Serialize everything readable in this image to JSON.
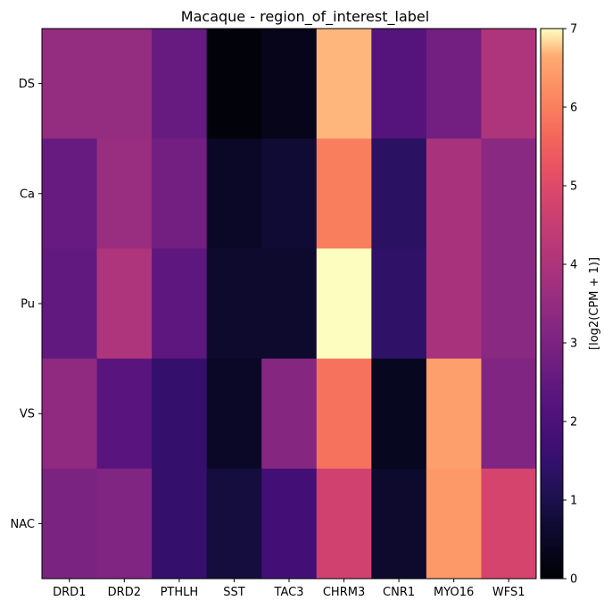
{
  "chart_data": {
    "type": "heatmap",
    "title": "Macaque - region_of_interest_label",
    "x_categories": [
      "DRD1",
      "DRD2",
      "PTHLH",
      "SST",
      "TAC3",
      "CHRM3",
      "CNR1",
      "MYO16",
      "WFS1"
    ],
    "y_categories": [
      "DS",
      "Ca",
      "Pu",
      "VS",
      "NAC"
    ],
    "values": [
      [
        3.5,
        3.5,
        2.6,
        0.1,
        0.3,
        6.7,
        2.2,
        2.8,
        4.0
      ],
      [
        2.6,
        3.6,
        2.8,
        0.5,
        0.7,
        6.0,
        1.3,
        3.9,
        3.3
      ],
      [
        2.5,
        4.0,
        2.4,
        0.6,
        0.6,
        7.0,
        1.4,
        3.9,
        3.3
      ],
      [
        3.4,
        2.3,
        1.5,
        0.5,
        3.2,
        5.8,
        0.4,
        6.5,
        3.1
      ],
      [
        3.0,
        3.1,
        1.5,
        0.8,
        1.8,
        4.7,
        0.6,
        6.4,
        4.8
      ]
    ],
    "colormap": "magma",
    "colorbar": {
      "label": "[log2(CPM + 1)]",
      "range": [
        0,
        7
      ],
      "ticks": [
        0,
        1,
        2,
        3,
        4,
        5,
        6,
        7
      ]
    }
  }
}
